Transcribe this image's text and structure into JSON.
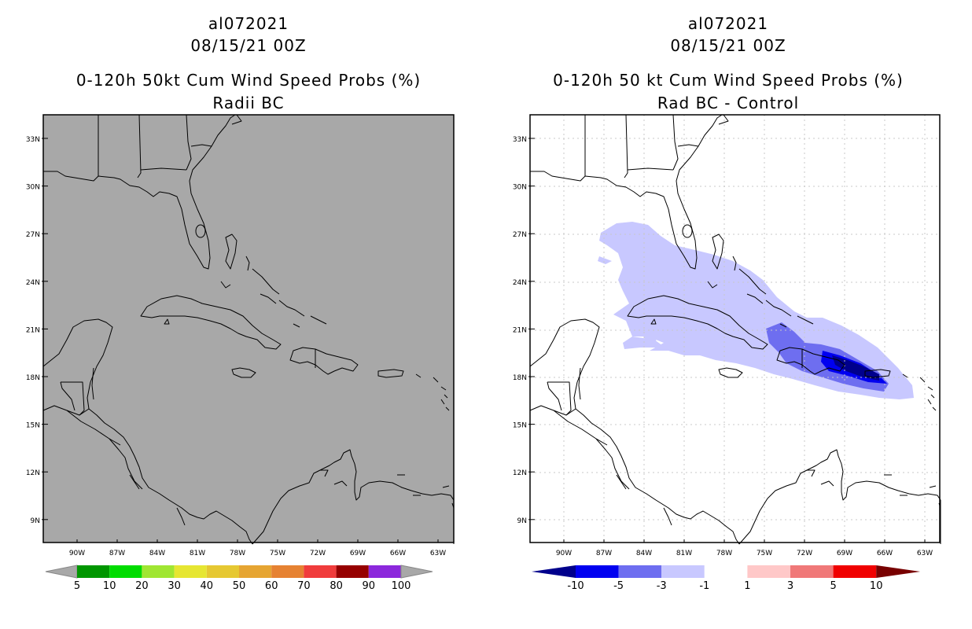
{
  "left_panel": {
    "storm_id": "al072021",
    "datetime": "08/15/21 00Z",
    "title": "0-120h 50kt Cum Wind Speed Probs (%)",
    "subtitle": "Radii BC",
    "background_color": "#a8a8a8"
  },
  "right_panel": {
    "storm_id": "al072021",
    "datetime": "08/15/21 00Z",
    "title": "0-120h 50 kt Cum Wind Speed Probs (%)",
    "subtitle": "Rad BC - Control",
    "background_color": "#ffffff"
  },
  "axes": {
    "lat_labels": [
      "33N",
      "30N",
      "27N",
      "24N",
      "21N",
      "18N",
      "15N",
      "12N",
      "9N"
    ],
    "lon_labels": [
      "90W",
      "87W",
      "84W",
      "81W",
      "78W",
      "75W",
      "72W",
      "69W",
      "66W",
      "63W"
    ]
  },
  "left_colorbar": {
    "labels": [
      "5",
      "10",
      "20",
      "30",
      "40",
      "50",
      "60",
      "70",
      "80",
      "90",
      "100"
    ],
    "colors": [
      "#a8a8a8",
      "#009600",
      "#00dc00",
      "#a0e632",
      "#e6e632",
      "#e6c832",
      "#e6a532",
      "#e68232",
      "#f03c3c",
      "#960000",
      "#8c28dc",
      "#a8a8a8"
    ]
  },
  "right_colorbar": {
    "labels": [
      "-10",
      "-5",
      "-3",
      "-1",
      "1",
      "3",
      "5",
      "10"
    ],
    "colors": [
      "#00008c",
      "#0000f0",
      "#6e6ef0",
      "#c8c8ff",
      "#ffffff",
      "#ffc8c8",
      "#f07878",
      "#f00000",
      "#780000"
    ]
  }
}
